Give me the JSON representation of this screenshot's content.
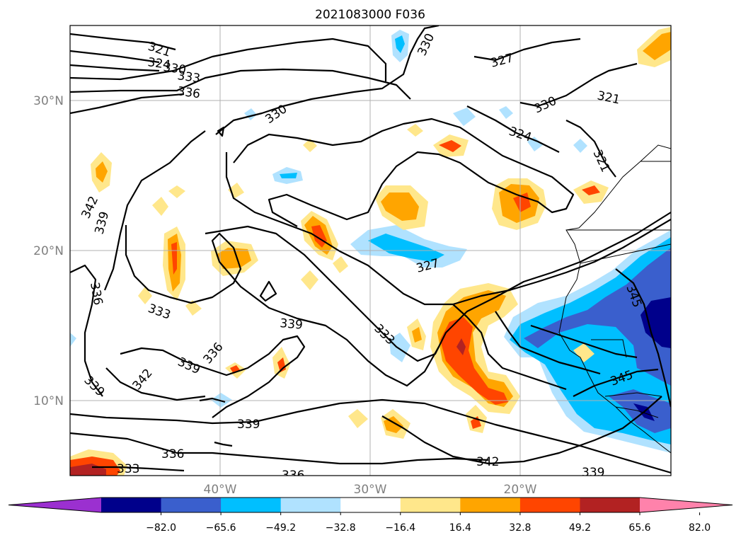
{
  "title": "2021083000 F036",
  "lat_labels": [
    "30°N",
    "20°N",
    "10°N"
  ],
  "lon_labels": [
    "40°W",
    "30°W",
    "20°W"
  ],
  "colorbar": {
    "ticks": [
      "−82.0",
      "−65.6",
      "−49.2",
      "−32.8",
      "−16.4",
      "16.4",
      "32.8",
      "49.2",
      "65.6",
      "82.0"
    ],
    "colors": [
      "#9b30d0",
      "#00008b",
      "#3a5fcd",
      "#00bfff",
      "#b0e2ff",
      "#ffffff",
      "#ffe78b",
      "#ffa500",
      "#ff4500",
      "#b22222",
      "#ff82ab"
    ]
  },
  "contour_labels": [
    "321",
    "324",
    "327",
    "330",
    "333",
    "336",
    "339",
    "342",
    "345"
  ]
}
